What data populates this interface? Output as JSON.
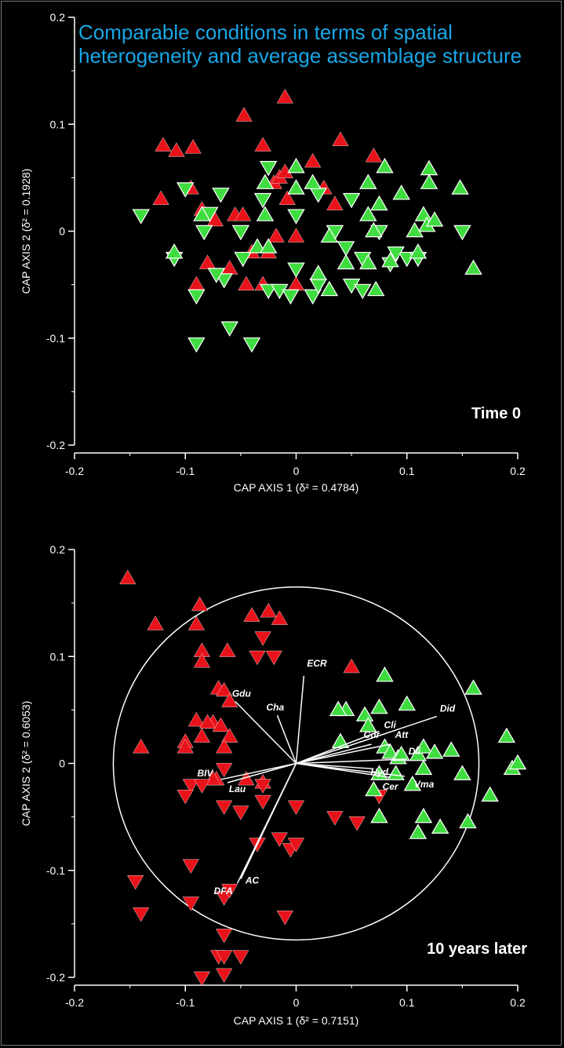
{
  "annotation": "Comparable conditions in terms of spatial heterogeneity and average assemblage structure",
  "colors": {
    "background": "#000000",
    "axis": "#ffffff",
    "red_group": "#e8121a",
    "green_group": "#3fdc3f",
    "annotation": "#1aa6e6"
  },
  "chart_data": [
    {
      "type": "scatter",
      "title": "",
      "panel_label": "Time 0",
      "xlabel": "CAP AXIS 1 (δ² = 0.4784)",
      "ylabel": "CAP AXIS 2 (δ² = 0.1928)",
      "xlim": [
        -0.2,
        0.2
      ],
      "ylim": [
        -0.2,
        0.2
      ],
      "xticks": [
        "-0.2",
        "-0.1",
        "0",
        "0.1",
        "0.2"
      ],
      "yticks": [
        "-0.2",
        "-0.1",
        "0",
        "0.1",
        "0.2"
      ],
      "series": [
        {
          "group": "red",
          "marker": "triangle-up",
          "color": "#e8121a",
          "points": [
            [
              -0.12,
              0.08
            ],
            [
              -0.108,
              0.075
            ],
            [
              -0.093,
              0.078
            ],
            [
              -0.122,
              0.03
            ],
            [
              -0.095,
              0.04
            ],
            [
              -0.085,
              0.02
            ],
            [
              -0.073,
              0.01
            ],
            [
              -0.08,
              -0.03
            ],
            [
              -0.09,
              -0.05
            ],
            [
              -0.06,
              -0.035
            ],
            [
              -0.055,
              0.015
            ],
            [
              -0.048,
              0.015
            ],
            [
              -0.045,
              -0.05
            ],
            [
              -0.04,
              -0.02
            ],
            [
              -0.025,
              -0.02
            ],
            [
              -0.03,
              -0.05
            ],
            [
              -0.03,
              0.08
            ],
            [
              -0.047,
              0.108
            ],
            [
              -0.01,
              0.125
            ],
            [
              -0.02,
              0.045
            ],
            [
              -0.015,
              0.05
            ],
            [
              -0.01,
              0.055
            ],
            [
              -0.008,
              0.03
            ],
            [
              -0.018,
              -0.005
            ],
            [
              0.0,
              -0.005
            ],
            [
              0.0,
              -0.05
            ],
            [
              0.015,
              0.065
            ],
            [
              0.025,
              0.04
            ],
            [
              0.035,
              0.025
            ],
            [
              0.04,
              0.085
            ],
            [
              0.07,
              0.07
            ]
          ]
        },
        {
          "group": "green",
          "marker": "triangle-down",
          "color": "#3fdc3f",
          "points": [
            [
              -0.14,
              0.015
            ],
            [
              -0.11,
              -0.025
            ],
            [
              -0.1,
              0.04
            ],
            [
              -0.09,
              -0.06
            ],
            [
              -0.065,
              -0.045
            ],
            [
              -0.072,
              -0.04
            ],
            [
              -0.06,
              -0.09
            ],
            [
              -0.078,
              0.017
            ],
            [
              -0.083,
              0.0
            ],
            [
              -0.068,
              0.035
            ],
            [
              -0.09,
              -0.105
            ],
            [
              -0.04,
              -0.105
            ],
            [
              -0.05,
              0.0
            ],
            [
              -0.048,
              -0.025
            ],
            [
              -0.025,
              -0.055
            ],
            [
              -0.015,
              -0.055
            ],
            [
              -0.005,
              -0.06
            ],
            [
              0.0,
              -0.035
            ],
            [
              0.015,
              -0.06
            ],
            [
              0.02,
              -0.05
            ],
            [
              0.0,
              0.015
            ],
            [
              -0.025,
              0.06
            ],
            [
              -0.03,
              0.03
            ],
            [
              0.02,
              0.035
            ],
            [
              0.035,
              0.0
            ],
            [
              0.045,
              -0.015
            ],
            [
              0.05,
              -0.05
            ],
            [
              0.05,
              0.03
            ],
            [
              0.06,
              -0.025
            ],
            [
              0.085,
              -0.03
            ],
            [
              0.1,
              -0.025
            ],
            [
              0.11,
              -0.025
            ],
            [
              0.075,
              0.0
            ],
            [
              0.09,
              -0.02
            ],
            [
              0.15,
              0.0
            ],
            [
              0.06,
              -0.055
            ]
          ]
        },
        {
          "group": "green",
          "marker": "triangle-up",
          "color": "#3fdc3f",
          "points": [
            [
              -0.11,
              -0.02
            ],
            [
              -0.085,
              0.015
            ],
            [
              -0.028,
              0.015
            ],
            [
              -0.028,
              0.045
            ],
            [
              0.0,
              0.06
            ],
            [
              0.0,
              0.04
            ],
            [
              -0.035,
              -0.015
            ],
            [
              -0.025,
              -0.015
            ],
            [
              0.02,
              -0.04
            ],
            [
              0.03,
              -0.055
            ],
            [
              0.065,
              0.015
            ],
            [
              0.085,
              -0.028
            ],
            [
              0.095,
              0.035
            ],
            [
              0.08,
              0.06
            ],
            [
              0.065,
              0.045
            ],
            [
              0.065,
              -0.03
            ],
            [
              0.07,
              0.0
            ],
            [
              0.075,
              0.025
            ],
            [
              0.115,
              0.015
            ],
            [
              0.12,
              0.058
            ],
            [
              0.12,
              0.045
            ],
            [
              0.118,
              0.005
            ],
            [
              0.11,
              -0.02
            ],
            [
              0.107,
              0.0
            ],
            [
              0.125,
              0.01
            ],
            [
              0.148,
              0.04
            ],
            [
              0.16,
              -0.035
            ],
            [
              0.072,
              -0.055
            ],
            [
              0.045,
              -0.03
            ],
            [
              0.03,
              -0.005
            ],
            [
              0.015,
              0.045
            ]
          ]
        }
      ]
    },
    {
      "type": "scatter",
      "title": "",
      "panel_label": "10 years later",
      "xlabel": "CAP AXIS 1 (δ² = 0.7151)",
      "ylabel": "CAP AXIS 2 (δ² = 0.6053)",
      "xlim": [
        -0.2,
        0.2
      ],
      "ylim": [
        -0.2,
        0.2
      ],
      "xticks": [
        "-0.2",
        "-0.1",
        "0",
        "0.1",
        "0.2"
      ],
      "yticks": [
        "-0.2",
        "-0.1",
        "0",
        "0.1",
        "0.2"
      ],
      "correlation_circle": {
        "center": [
          0,
          0
        ],
        "radius": 0.165
      },
      "vectors": [
        {
          "label": "ECR",
          "x": 0.007,
          "y": 0.082
        },
        {
          "label": "Did",
          "x": 0.127,
          "y": 0.044
        },
        {
          "label": "Gdu",
          "x": -0.055,
          "y": 0.058
        },
        {
          "label": "Cha",
          "x": -0.017,
          "y": 0.045
        },
        {
          "label": "Cli",
          "x": 0.075,
          "y": 0.03
        },
        {
          "label": "Cor",
          "x": 0.068,
          "y": 0.018
        },
        {
          "label": "Att",
          "x": 0.085,
          "y": 0.018
        },
        {
          "label": "Dli",
          "x": 0.1,
          "y": 0.004
        },
        {
          "label": "Hyd",
          "x": 0.07,
          "y": -0.005
        },
        {
          "label": "Cer",
          "x": 0.085,
          "y": -0.013
        },
        {
          "label": "Vma",
          "x": 0.098,
          "y": -0.012
        },
        {
          "label": "BIV",
          "x": -0.068,
          "y": -0.015
        },
        {
          "label": "Lau",
          "x": -0.062,
          "y": -0.018
        },
        {
          "label": "AC",
          "x": -0.05,
          "y": -0.108
        },
        {
          "label": "DFA",
          "x": -0.053,
          "y": -0.112
        }
      ],
      "series": [
        {
          "group": "red",
          "marker": "triangle-up",
          "color": "#e8121a",
          "points": [
            [
              -0.152,
              0.173
            ],
            [
              -0.127,
              0.13
            ],
            [
              -0.087,
              0.148
            ],
            [
              -0.09,
              0.13
            ],
            [
              -0.085,
              0.105
            ],
            [
              -0.085,
              0.095
            ],
            [
              -0.062,
              0.105
            ],
            [
              -0.04,
              0.138
            ],
            [
              -0.025,
              0.142
            ],
            [
              -0.015,
              0.135
            ],
            [
              -0.07,
              0.07
            ],
            [
              -0.065,
              0.068
            ],
            [
              -0.075,
              0.038
            ],
            [
              -0.06,
              0.058
            ],
            [
              -0.09,
              0.04
            ],
            [
              -0.08,
              0.038
            ],
            [
              -0.085,
              0.025
            ],
            [
              -0.1,
              0.02
            ],
            [
              -0.1,
              0.015
            ],
            [
              -0.068,
              0.035
            ],
            [
              -0.06,
              0.025
            ],
            [
              -0.065,
              0.015
            ],
            [
              -0.14,
              0.015
            ],
            [
              -0.072,
              -0.015
            ],
            [
              -0.075,
              -0.015
            ],
            [
              -0.045,
              -0.015
            ],
            [
              -0.03,
              -0.018
            ],
            [
              0.05,
              0.09
            ]
          ]
        },
        {
          "group": "red",
          "marker": "triangle-down",
          "color": "#e8121a",
          "points": [
            [
              -0.03,
              0.118
            ],
            [
              -0.035,
              0.1
            ],
            [
              -0.02,
              0.1
            ],
            [
              -0.095,
              -0.02
            ],
            [
              -0.085,
              -0.02
            ],
            [
              -0.1,
              -0.03
            ],
            [
              -0.065,
              -0.04
            ],
            [
              -0.05,
              -0.045
            ],
            [
              -0.065,
              -0.005
            ],
            [
              -0.03,
              -0.02
            ],
            [
              -0.03,
              -0.035
            ],
            [
              0.0,
              -0.04
            ],
            [
              0.035,
              -0.05
            ],
            [
              0.055,
              -0.055
            ],
            [
              0.075,
              -0.03
            ],
            [
              -0.015,
              -0.07
            ],
            [
              -0.005,
              -0.08
            ],
            [
              0.0,
              -0.075
            ],
            [
              -0.035,
              -0.075
            ],
            [
              -0.095,
              -0.095
            ],
            [
              -0.145,
              -0.11
            ],
            [
              -0.14,
              -0.14
            ],
            [
              -0.095,
              -0.13
            ],
            [
              -0.065,
              -0.125
            ],
            [
              -0.065,
              -0.16
            ],
            [
              -0.07,
              -0.18
            ],
            [
              -0.065,
              -0.18
            ],
            [
              -0.05,
              -0.18
            ],
            [
              -0.085,
              -0.2
            ],
            [
              -0.065,
              -0.197
            ],
            [
              -0.01,
              -0.143
            ],
            [
              -0.06,
              -0.118
            ]
          ]
        },
        {
          "group": "green",
          "marker": "triangle-up",
          "color": "#3fdc3f",
          "points": [
            [
              0.08,
              0.082
            ],
            [
              0.1,
              0.055
            ],
            [
              0.075,
              0.052
            ],
            [
              0.045,
              0.05
            ],
            [
              0.038,
              0.05
            ],
            [
              0.062,
              0.045
            ],
            [
              0.065,
              0.035
            ],
            [
              0.04,
              0.02
            ],
            [
              0.08,
              0.015
            ],
            [
              0.085,
              0.01
            ],
            [
              0.092,
              0.005
            ],
            [
              0.095,
              0.008
            ],
            [
              0.11,
              0.008
            ],
            [
              0.115,
              0.015
            ],
            [
              0.125,
              0.01
            ],
            [
              0.14,
              0.012
            ],
            [
              0.115,
              -0.005
            ],
            [
              0.09,
              -0.01
            ],
            [
              0.105,
              -0.02
            ],
            [
              0.075,
              -0.01
            ],
            [
              0.07,
              -0.025
            ],
            [
              0.075,
              -0.05
            ],
            [
              0.115,
              -0.05
            ],
            [
              0.11,
              -0.065
            ],
            [
              0.13,
              -0.06
            ],
            [
              0.155,
              -0.055
            ],
            [
              0.15,
              -0.01
            ],
            [
              0.175,
              -0.03
            ],
            [
              0.16,
              0.07
            ],
            [
              0.19,
              0.025
            ],
            [
              0.195,
              -0.005
            ],
            [
              0.2,
              0.0
            ]
          ]
        }
      ]
    }
  ]
}
